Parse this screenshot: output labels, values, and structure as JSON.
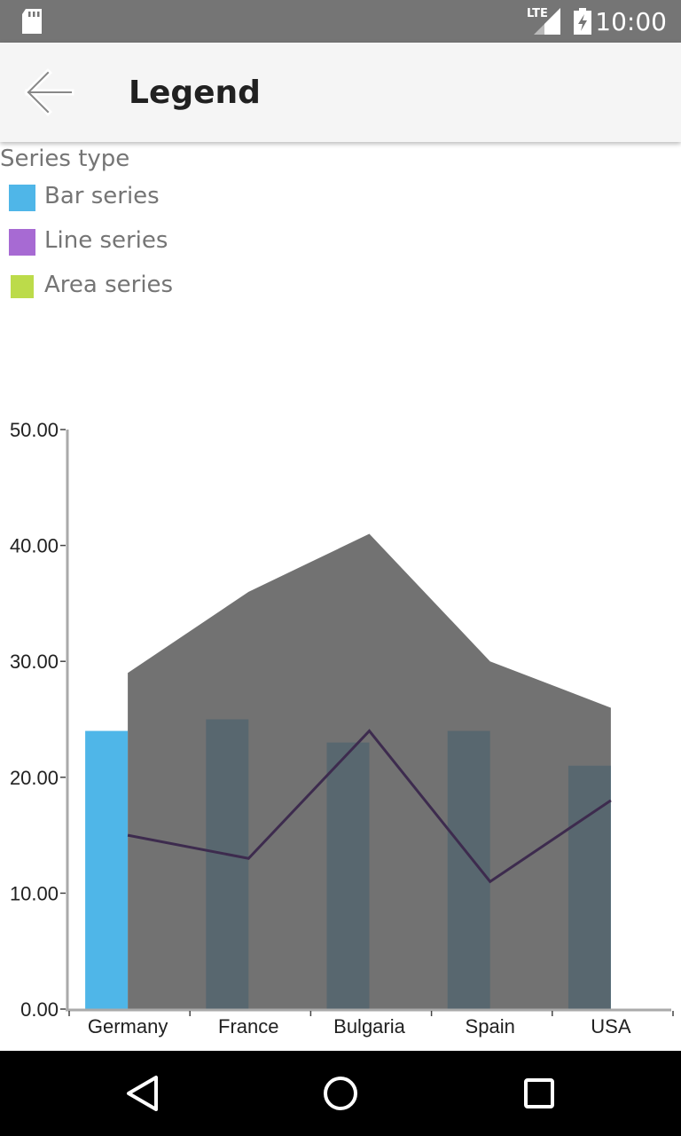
{
  "status_bar": {
    "time": "10:00",
    "network": "LTE"
  },
  "app_bar": {
    "title": "Legend"
  },
  "legend": {
    "title": "Series type",
    "items": [
      {
        "label": "Bar series",
        "color": "#4fb6e8"
      },
      {
        "label": "Line series",
        "color": "#a76ad3"
      },
      {
        "label": "Area series",
        "color": "#bcdb4a"
      }
    ]
  },
  "chart_data": {
    "type": "bar",
    "categories": [
      "Germany",
      "France",
      "Bulgaria",
      "Spain",
      "USA"
    ],
    "ylim": [
      0,
      50
    ],
    "yticks": [
      "0.00",
      "10.00",
      "20.00",
      "30.00",
      "40.00",
      "50.00"
    ],
    "series": [
      {
        "type": "bar",
        "values": [
          24,
          25,
          23,
          24,
          21
        ],
        "color": "#4fb6e8",
        "overlap_color": "#234452"
      },
      {
        "type": "area",
        "values": [
          29,
          36,
          41,
          30,
          26
        ],
        "color": "#595959"
      },
      {
        "type": "line",
        "values": [
          15,
          13,
          24,
          11,
          18
        ],
        "color": "#3d2b4e"
      }
    ],
    "axis_color": "#aaaaaa",
    "grid": false
  }
}
